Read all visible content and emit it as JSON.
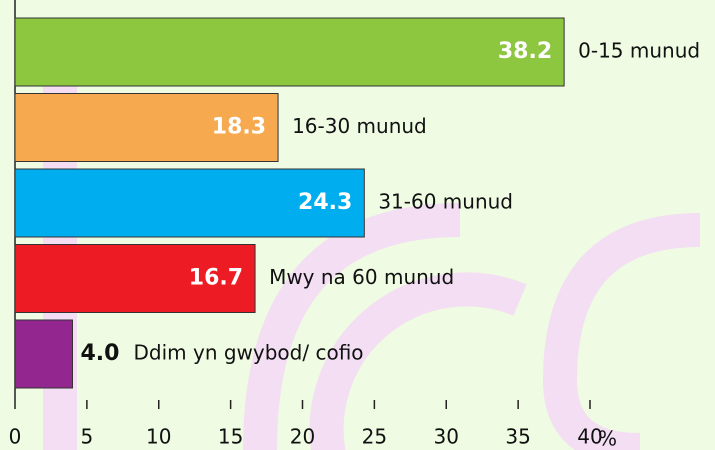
{
  "chart_data": {
    "type": "barh",
    "categories": [
      "0-15 munud",
      "16-30 munud",
      "31-60 munud",
      "Mwy na 60 munud",
      "Ddim yn gwybod/ cofio"
    ],
    "values": [
      38.2,
      18.3,
      24.3,
      16.7,
      4
    ],
    "value_labels": [
      "38.2",
      "18.3",
      "24.3",
      "16.7",
      "4.0"
    ],
    "colors": [
      "#8dc63f",
      "#f7a94f",
      "#00aeef",
      "#ed1c24",
      "#93278f"
    ],
    "xlim": [
      0,
      40
    ],
    "xticks": [
      0,
      5,
      10,
      15,
      20,
      25,
      30,
      35,
      40
    ],
    "xlabel": "%"
  }
}
